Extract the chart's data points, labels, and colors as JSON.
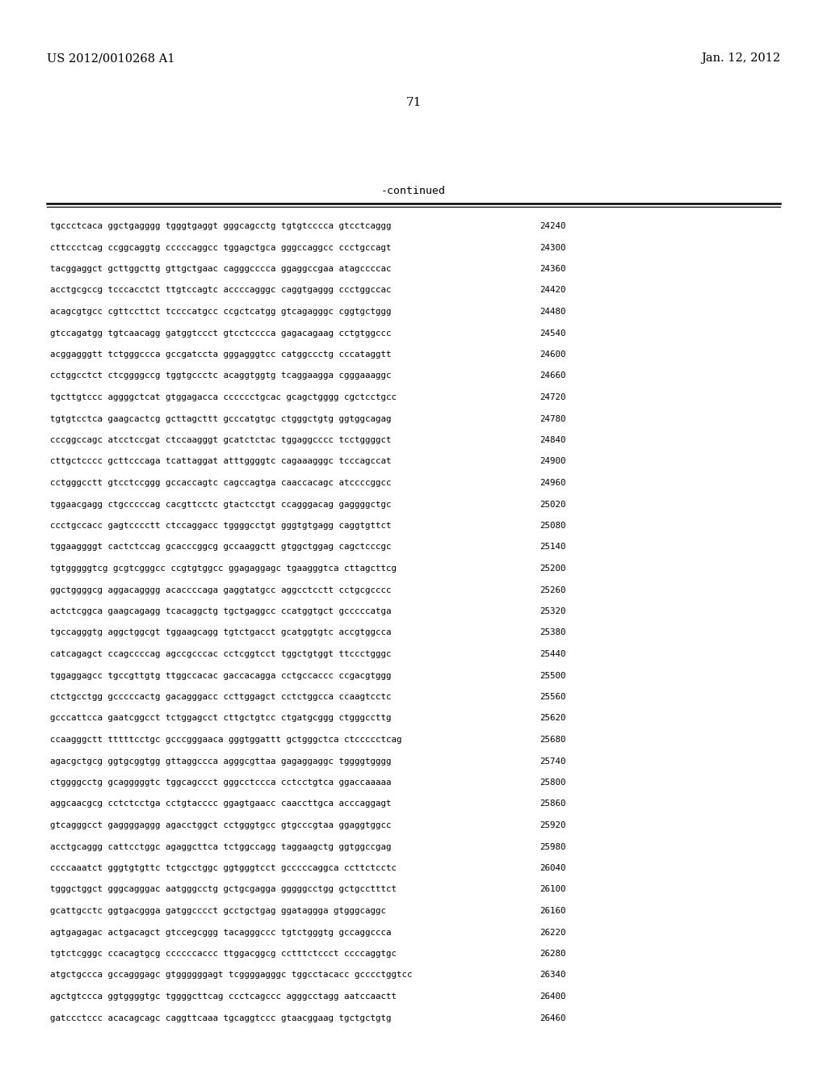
{
  "header_left": "US 2012/0010268 A1",
  "header_right": "Jan. 12, 2012",
  "page_number": "71",
  "continued_label": "-continued",
  "background_color": "#ffffff",
  "text_color": "#000000",
  "sequence_lines": [
    {
      "seq": "tgccctcaca ggctgagggg tgggtgaggt gggcagcctg tgtgtcccca gtcctcaggg",
      "num": "24240"
    },
    {
      "seq": "cttccctcag ccggcaggtg cccccaggcc tggagctgca gggccaggcc ccctgccagt",
      "num": "24300"
    },
    {
      "seq": "tacggaggct gcttggcttg gttgctgaac cagggcccca ggaggccgaa atagccccac",
      "num": "24360"
    },
    {
      "seq": "acctgcgccg tcccacctct ttgtccagtc accccagggc caggtgaggg ccctggccac",
      "num": "24420"
    },
    {
      "seq": "acagcgtgcc cgttccttct tccccatgcc ccgctcatgg gtcagagggc cggtgctggg",
      "num": "24480"
    },
    {
      "seq": "gtccagatgg tgtcaacagg gatggtccct gtcctcccca gagacagaag cctgtggccc",
      "num": "24540"
    },
    {
      "seq": "acggagggtt tctgggccca gccgatccta gggagggtcc catggccctg cccataggtt",
      "num": "24600"
    },
    {
      "seq": "cctggcctct ctcggggccg tggtgccctc acaggtggtg tcaggaagga cgggaaaggc",
      "num": "24660"
    },
    {
      "seq": "tgcttgtccc aggggctcat gtggagacca cccccctgcac gcagctgggg cgctcctgcc",
      "num": "24720"
    },
    {
      "seq": "tgtgtcctca gaagcactcg gcttagcttt gcccatgtgc ctgggctgtg ggtggcagag",
      "num": "24780"
    },
    {
      "seq": "cccggccagc atcctccgat ctccaagggt gcatctctac tggaggcccc tcctggggct",
      "num": "24840"
    },
    {
      "seq": "cttgctcccc gcttcccaga tcattaggat atttggggtc cagaaagggc tcccagccat",
      "num": "24900"
    },
    {
      "seq": "cctgggcctt gtcctccggg gccaccagtc cagccagtga caaccacagc atccccggcc",
      "num": "24960"
    },
    {
      "seq": "tggaacgagg ctgcccccag cacgttcctc gtactcctgt ccagggacag gaggggctgc",
      "num": "25020"
    },
    {
      "seq": "ccctgccacc gagtcccctt ctccaggacc tggggcctgt gggtgtgagg caggtgttct",
      "num": "25080"
    },
    {
      "seq": "tggaaggggt cactctccag gcacccggcg gccaaggctt gtggctggag cagctcccgc",
      "num": "25140"
    },
    {
      "seq": "tgtgggggtcg gcgtcgggcc ccgtgtggcc ggagaggagc tgaagggtca cttagcttcg",
      "num": "25200"
    },
    {
      "seq": "ggctggggcg aggacagggg acaccccaga gaggtatgcc aggcctcctt cctgcgcccc",
      "num": "25260"
    },
    {
      "seq": "actctcggca gaagcagagg tcacaggctg tgctgaggcc ccatggtgct gcccccatga",
      "num": "25320"
    },
    {
      "seq": "tgccagggtg aggctggcgt tggaagcagg tgtctgacct gcatggtgtc accgtggcca",
      "num": "25380"
    },
    {
      "seq": "catcagagct ccagccccag agccgcccac cctcggtcct tggctgtggt ttccctgggc",
      "num": "25440"
    },
    {
      "seq": "tggaggagcc tgccgttgtg ttggccacac gaccacagga cctgccaccc ccgacgtggg",
      "num": "25500"
    },
    {
      "seq": "ctctgcctgg gcccccactg gacagggacc ccttggagct cctctggcca ccaagtcctc",
      "num": "25560"
    },
    {
      "seq": "gcccattcca gaatcggcct tctggagcct cttgctgtcc ctgatgcggg ctgggccttg",
      "num": "25620"
    },
    {
      "seq": "ccaagggctt tttttcctgc gcccgggaaca gggtggattt gctgggctca ctccccctcag",
      "num": "25680"
    },
    {
      "seq": "agacgctgcg ggtgcggtgg gttaggccca agggcgttaa gagaggaggc tggggtgggg",
      "num": "25740"
    },
    {
      "seq": "ctggggcctg gcagggggtc tggcagccct gggcctccca cctcctgtca ggaccaaaaa",
      "num": "25800"
    },
    {
      "seq": "aggcaacgcg cctctcctga cctgtacccc ggagtgaacc caaccttgca acccaggagt",
      "num": "25860"
    },
    {
      "seq": "gtcagggcct gaggggaggg agacctggct cctgggtgcc gtgcccgtaa ggaggtggcc",
      "num": "25920"
    },
    {
      "seq": "acctgcaggg cattcctggc agaggcttca tctggccagg taggaagctg ggtggccgag",
      "num": "25980"
    },
    {
      "seq": "ccccaaatct gggtgtgttc tctgcctggc ggtgggtcct gcccccaggca ccttctcctc",
      "num": "26040"
    },
    {
      "seq": "tgggctggct gggcagggac aatgggcctg gctgcgagga gggggcctgg gctgcctttct",
      "num": "26100"
    },
    {
      "seq": "gcattgcctc ggtgacggga gatggcccct gcctgctgag ggataggga gtgggcaggc",
      "num": "26160"
    },
    {
      "seq": "agtgagagac actgacagct gtccegcggg tacagggccc tgtctgggtg gccaggccca",
      "num": "26220"
    },
    {
      "seq": "tgtctcgggc ccacagtgcg ccccccaccc ttggacggcg cctttctccct ccccaggtgc",
      "num": "26280"
    },
    {
      "seq": "atgctgccca gccagggagc gtggggggagt tcggggagggc tggcctacacc gcccctggtcc",
      "num": "26340"
    },
    {
      "seq": "agctgtccca ggtggggtgc tggggcttcag ccctcagccc agggcctagg aatccaactt",
      "num": "26400"
    },
    {
      "seq": "gatccctccc acacagcagc caggttcaaa tgcaggtccc gtaacggaag tgctgctgtg",
      "num": "26460"
    }
  ]
}
